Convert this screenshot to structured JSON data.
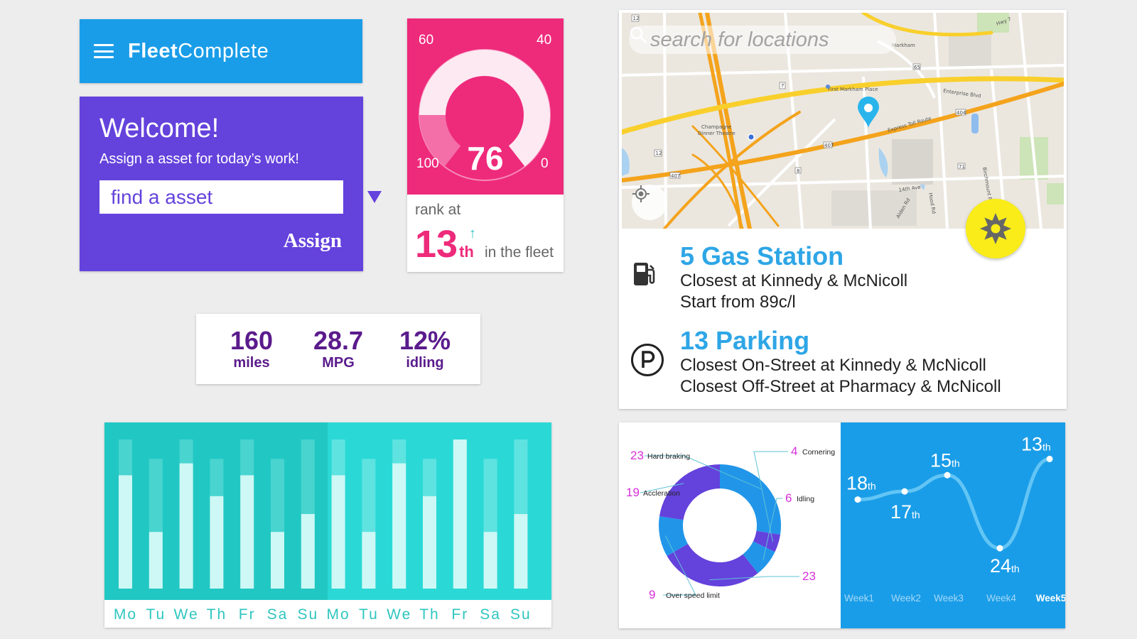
{
  "header": {
    "brand_bold": "Fleet",
    "brand_light": "Complete",
    "menu_icon": "hamburger-menu-icon"
  },
  "welcome": {
    "title": "Welcome!",
    "subtitle": "Assign a asset for today’s work!",
    "search_placeholder": "find a asset",
    "assign_label": "Assign",
    "color": "#6442dc"
  },
  "gauge": {
    "value": "76",
    "ticks": {
      "top_left": "60",
      "top_right": "40",
      "bottom_left": "100",
      "bottom_right": "0"
    },
    "rank_label": "rank at",
    "rank": "13",
    "rank_suffix": "th",
    "rank_trend": "↑",
    "rank_tail": "in the fleet",
    "color": "#ee2a7b"
  },
  "stats": [
    {
      "value": "160",
      "unit": "miles"
    },
    {
      "value": "28.7",
      "unit": "MPG"
    },
    {
      "value": "12%",
      "unit": "idling"
    }
  ],
  "map": {
    "search_placeholder": "search for locations",
    "labels": {
      "first_markham": "First Markham Place",
      "champagne": "Champagne",
      "dinner": "Dinner Theatre",
      "express": "Express Toll Route",
      "enterprise": "Enterprise Blvd",
      "hwy": "Hwy 7",
      "ave14": "14th Ave",
      "alden": "Alden Rd",
      "birchmount": "Birchmount Rd",
      "woodbine": "Hood Rd",
      "markham": "Markham",
      "r404": "404",
      "r407": "407",
      "r7": "7",
      "r12": "12",
      "r8": "8",
      "r71": "71",
      "r65": "65",
      "r407b": "407"
    }
  },
  "poi": [
    {
      "title": "5 Gas Station",
      "lines": [
        "Closest at Kinnedy & McNicoll",
        "Start from 89c/l"
      ],
      "icon": "gas-pump-icon"
    },
    {
      "title": "13 Parking",
      "lines": [
        "Closest On-Street at Kinnedy & McNicoll",
        "Closest Off-Street at Pharmacy & McNicoll"
      ],
      "icon": "parking-icon"
    }
  ],
  "bar_chart": {
    "days": [
      "Mo",
      "Tu",
      "We",
      "Th",
      "Fr",
      "Sa",
      "Su",
      "Mo",
      "Tu",
      "We",
      "Th",
      "Fr",
      "Sa",
      "Su"
    ],
    "colors": {
      "bg_left": "#21c8c3",
      "bg_right": "#2ad9d6",
      "label": "#2fc6bf"
    }
  },
  "chart_data": [
    {
      "type": "bar",
      "title": "",
      "categories": [
        "Mo",
        "Tu",
        "We",
        "Th",
        "Fr",
        "Sa",
        "Su",
        "Mo",
        "Tu",
        "We",
        "Th",
        "Fr",
        "Sa",
        "Su"
      ],
      "series": [
        {
          "name": "value",
          "values": [
            0.76,
            0.38,
            0.84,
            0.62,
            0.76,
            0.38,
            0.5,
            0.76,
            0.38,
            0.84,
            0.62,
            1.0,
            0.38,
            0.5
          ]
        },
        {
          "name": "track",
          "values": [
            1,
            0.87,
            1,
            0.87,
            1,
            0.87,
            1,
            1,
            0.87,
            1,
            0.87,
            1,
            0.87,
            1
          ]
        }
      ],
      "ylim": [
        0,
        1
      ],
      "xlabel": "",
      "ylabel": ""
    },
    {
      "type": "pie",
      "title": "",
      "categories": [
        "Hard braking",
        "Cornering",
        "Idling",
        "",
        "Over speed limit",
        "Accleration"
      ],
      "values": [
        23,
        4,
        6,
        23,
        9,
        19
      ],
      "labels": [
        "23",
        "4",
        "6",
        "23",
        "9",
        "19"
      ],
      "names": [
        "Hard braking",
        "Cornering",
        "Idling",
        "",
        "Over speed limit",
        "Accleration"
      ],
      "colors": [
        "#2196e9",
        "#6442dc",
        "#2196e9",
        "#6442dc",
        "#2196e9",
        "#6442dc"
      ]
    },
    {
      "type": "line",
      "title": "",
      "categories": [
        "Week1",
        "Week2",
        "Week3",
        "Week4",
        "Week5"
      ],
      "x": [
        "Week1",
        "Week2",
        "Week3",
        "Week4",
        "Week5"
      ],
      "values": [
        18,
        17,
        15,
        24,
        13
      ],
      "suffix": "th",
      "ylim": [
        26,
        12
      ],
      "xlabel": "",
      "ylabel": ""
    }
  ]
}
